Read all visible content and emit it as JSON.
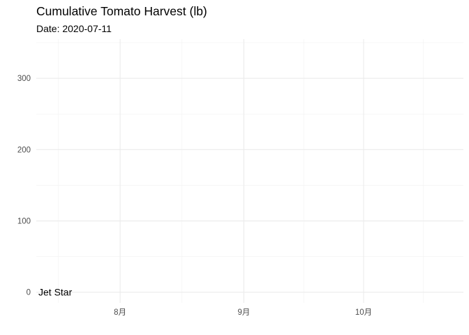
{
  "chart_data": {
    "type": "line",
    "title": "Cumulative Tomato Harvest (lb)",
    "subtitle": "Date: 2020-07-11",
    "xlabel": "",
    "ylabel": "",
    "x_type": "date",
    "xlim": [
      "2020-07-11",
      "2020-10-26"
    ],
    "ylim": [
      -15,
      355
    ],
    "x_ticks": [
      {
        "date": "2020-08-01",
        "label": "8月"
      },
      {
        "date": "2020-09-01",
        "label": "9月"
      },
      {
        "date": "2020-10-01",
        "label": "10月"
      }
    ],
    "y_ticks": [
      0,
      100,
      200,
      300
    ],
    "grid": true,
    "legend": "none",
    "series": [
      {
        "name": "Jet Star",
        "x": [
          "2020-07-11"
        ],
        "y": [
          0
        ]
      }
    ]
  }
}
